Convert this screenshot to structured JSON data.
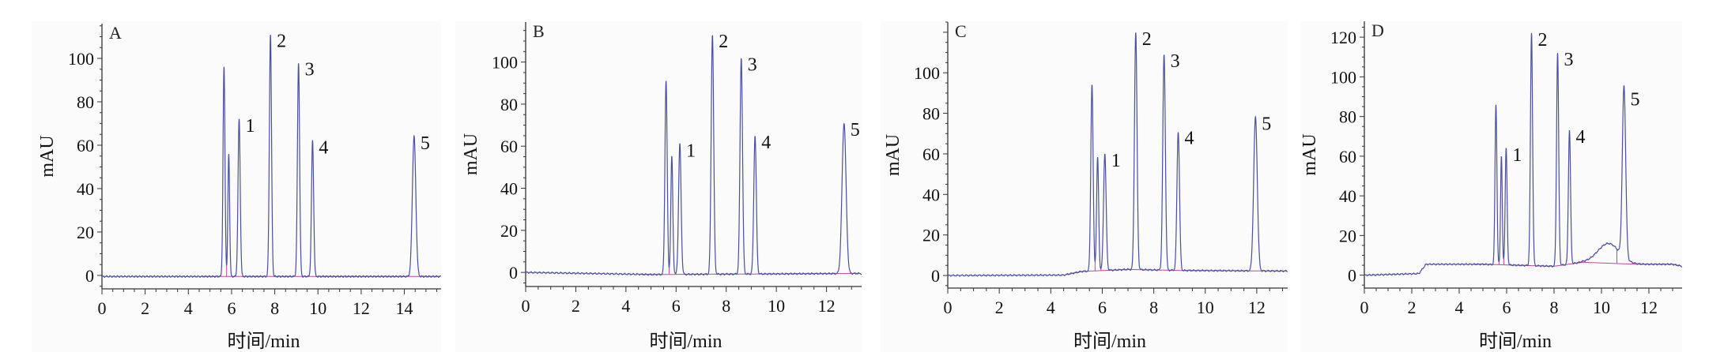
{
  "colors": {
    "trace": "#4a4f9e",
    "integration": "#c8449a",
    "axis": "#333333"
  },
  "chart_data": [
    {
      "type": "line",
      "panel": "A",
      "xlabel": "时间/min",
      "ylabel": "mAU",
      "xlim": [
        0,
        15.7
      ],
      "ylim": [
        -6.2,
        116
      ],
      "xticks": [
        0,
        2,
        4,
        6,
        8,
        10,
        12,
        14
      ],
      "yticks": [
        0,
        20,
        40,
        60,
        80,
        100
      ],
      "baseline": [
        [
          0,
          -0.5
        ],
        [
          15.7,
          -0.5
        ]
      ],
      "peaks": [
        {
          "t": 5.65,
          "h": 96,
          "w": 0.045,
          "label": ""
        },
        {
          "t": 5.87,
          "h": 56,
          "w": 0.04,
          "label": ""
        },
        {
          "t": 6.35,
          "h": 72,
          "w": 0.05,
          "label": "1"
        },
        {
          "t": 7.8,
          "h": 111,
          "w": 0.05,
          "label": "2"
        },
        {
          "t": 9.1,
          "h": 98,
          "w": 0.05,
          "label": "3"
        },
        {
          "t": 9.75,
          "h": 62,
          "w": 0.05,
          "label": "4"
        },
        {
          "t": 14.45,
          "h": 64,
          "w": 0.08,
          "label": "5"
        }
      ],
      "drops": [
        5.77,
        6.15
      ]
    },
    {
      "type": "line",
      "panel": "B",
      "xlabel": "时间/min",
      "ylabel": "mAU",
      "xlim": [
        0,
        13.4
      ],
      "ylim": [
        -6.7,
        119
      ],
      "xticks": [
        0,
        2,
        4,
        6,
        8,
        10,
        12
      ],
      "yticks": [
        0,
        20,
        40,
        60,
        80,
        100
      ],
      "baseline": [
        [
          0,
          0
        ],
        [
          5,
          -1
        ],
        [
          13.4,
          -0.5
        ]
      ],
      "peaks": [
        {
          "t": 5.6,
          "h": 91,
          "w": 0.045,
          "label": ""
        },
        {
          "t": 5.83,
          "h": 55,
          "w": 0.04,
          "label": ""
        },
        {
          "t": 6.15,
          "h": 61,
          "w": 0.05,
          "label": "1"
        },
        {
          "t": 7.45,
          "h": 113,
          "w": 0.05,
          "label": "2"
        },
        {
          "t": 8.6,
          "h": 102,
          "w": 0.05,
          "label": "3"
        },
        {
          "t": 9.15,
          "h": 65,
          "w": 0.05,
          "label": "4"
        },
        {
          "t": 12.7,
          "h": 71,
          "w": 0.08,
          "label": "5"
        }
      ],
      "drops": [
        5.72,
        5.98
      ]
    },
    {
      "type": "line",
      "panel": "C",
      "xlabel": "时间/min",
      "ylabel": "mAU",
      "xlim": [
        0,
        13.2
      ],
      "ylim": [
        -6.2,
        125
      ],
      "xticks": [
        0,
        2,
        4,
        6,
        8,
        10,
        12
      ],
      "yticks": [
        0,
        20,
        40,
        60,
        80,
        100
      ],
      "baseline": [
        [
          0,
          0
        ],
        [
          4.5,
          0.2
        ],
        [
          5.2,
          2
        ],
        [
          7,
          3
        ],
        [
          9,
          2.5
        ],
        [
          13.2,
          2.2
        ]
      ],
      "peaks": [
        {
          "t": 5.6,
          "h": 94,
          "w": 0.045,
          "label": ""
        },
        {
          "t": 5.82,
          "h": 58,
          "w": 0.04,
          "label": ""
        },
        {
          "t": 6.1,
          "h": 60,
          "w": 0.05,
          "label": "1"
        },
        {
          "t": 7.3,
          "h": 120,
          "w": 0.05,
          "label": "2"
        },
        {
          "t": 8.4,
          "h": 109,
          "w": 0.05,
          "label": "3"
        },
        {
          "t": 8.95,
          "h": 71,
          "w": 0.05,
          "label": "4"
        },
        {
          "t": 11.95,
          "h": 78,
          "w": 0.07,
          "label": "5"
        }
      ],
      "drops": [
        5.72,
        5.95
      ]
    },
    {
      "type": "line",
      "panel": "D",
      "xlabel": "时间/min",
      "ylabel": "mAU",
      "xlim": [
        0,
        13.4
      ],
      "ylim": [
        -6.5,
        128
      ],
      "xticks": [
        0,
        2,
        4,
        6,
        8,
        10,
        12
      ],
      "yticks": [
        0,
        20,
        40,
        60,
        80,
        100,
        120
      ],
      "baseline": [
        [
          0,
          0
        ],
        [
          2.3,
          0.8
        ],
        [
          2.6,
          5.5
        ],
        [
          5,
          5.5
        ],
        [
          8,
          4.5
        ],
        [
          9.2,
          6.5
        ],
        [
          11.5,
          5.5
        ],
        [
          13,
          5.5
        ],
        [
          13.4,
          4.5
        ]
      ],
      "peaks": [
        {
          "t": 5.55,
          "h": 86,
          "w": 0.04,
          "label": ""
        },
        {
          "t": 5.78,
          "h": 60,
          "w": 0.035,
          "label": ""
        },
        {
          "t": 5.98,
          "h": 64,
          "w": 0.04,
          "label": "1"
        },
        {
          "t": 7.05,
          "h": 122,
          "w": 0.045,
          "label": "2"
        },
        {
          "t": 8.15,
          "h": 112,
          "w": 0.045,
          "label": "3"
        },
        {
          "t": 8.65,
          "h": 73,
          "w": 0.045,
          "label": "4"
        },
        {
          "t": 10.3,
          "h": 16,
          "w": 0.45,
          "label": ""
        },
        {
          "t": 10.95,
          "h": 92,
          "w": 0.07,
          "label": "5"
        }
      ],
      "drops": [
        5.68,
        5.88,
        10.65
      ]
    }
  ]
}
